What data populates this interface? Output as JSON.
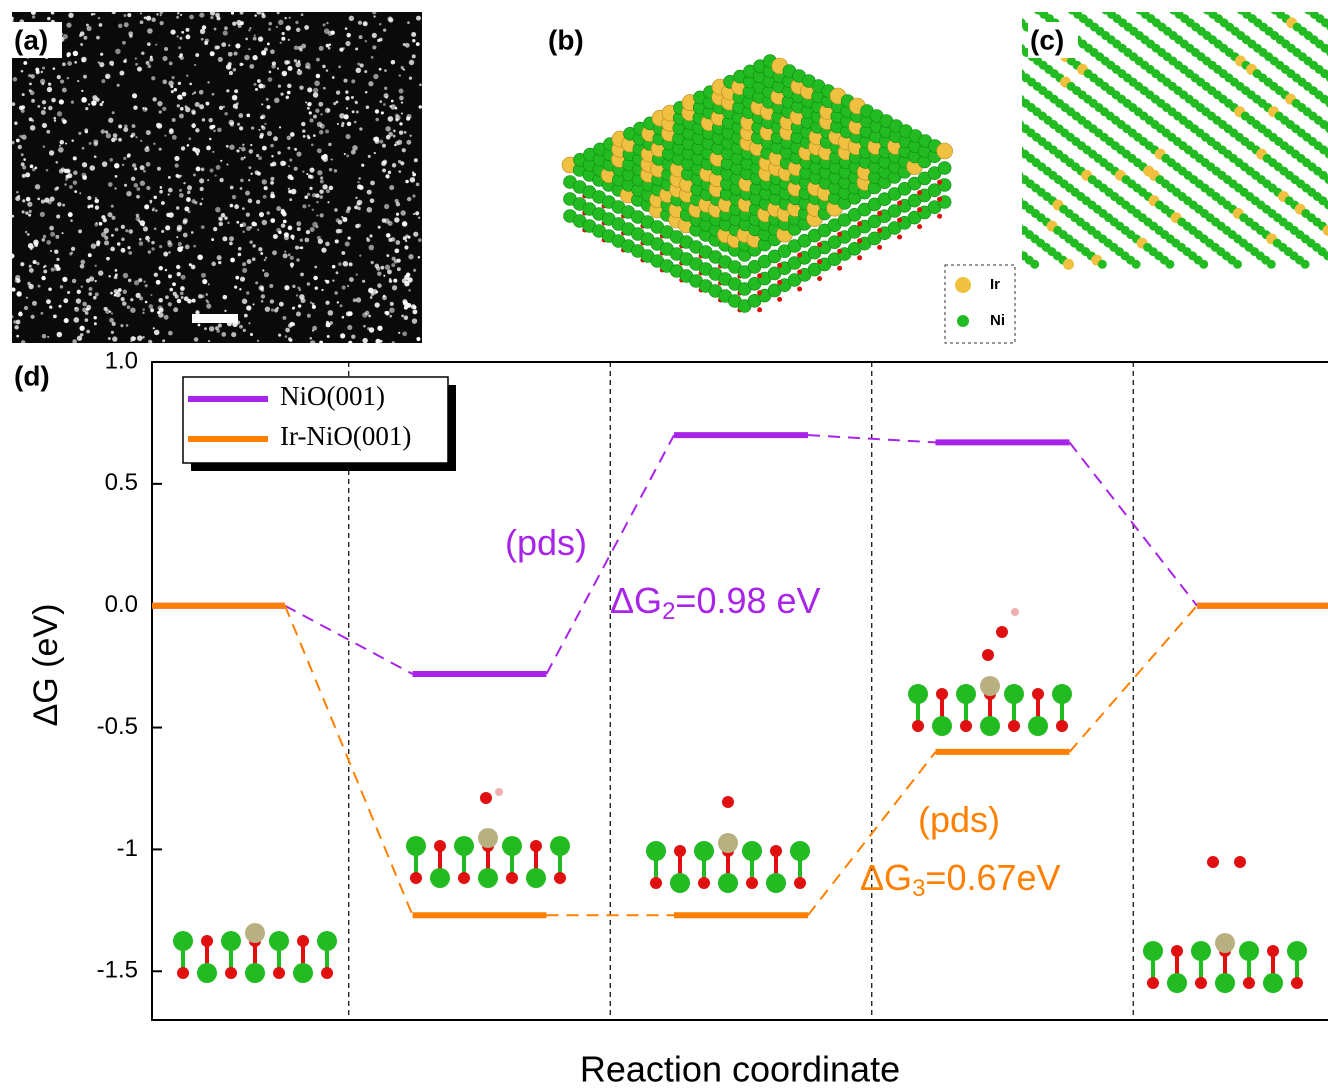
{
  "panel_labels": [
    "(a)",
    "(b)",
    "(c)",
    "(d)"
  ],
  "panel_b_legend": [
    "Ir",
    "Ni"
  ],
  "chart_data": {
    "type": "energy-levels",
    "xlabel": "Reaction coordinate",
    "ylabel": "ΔG (eV)",
    "categories": [
      null,
      null,
      null,
      null,
      null
    ],
    "series": [
      {
        "name": "NiO(001)",
        "color": "#a824e8",
        "values": [
          0,
          -0.28,
          0.7,
          0.67,
          0
        ]
      },
      {
        "name": "Ir-NiO(001)",
        "color": "#ff8000",
        "values": [
          0,
          -1.27,
          -1.27,
          -0.6,
          0
        ]
      }
    ],
    "ylim": [
      -1.7,
      1.0
    ],
    "yticks": [
      -1.5,
      -1.0,
      -0.5,
      {
        "value": 0,
        "label": "0.0"
      },
      0.5,
      {
        "value": 1,
        "label": "1.0"
      }
    ],
    "legend": "top-left",
    "annotations": [
      {
        "text": "(pds)",
        "color": "#a824e8"
      },
      {
        "text": "ΔG",
        "subscript": "2",
        "text_after": "=0.98 eV",
        "color": "#a824e8"
      },
      {
        "text": "(pds)",
        "color": "#ff8000"
      },
      {
        "text": "ΔG",
        "subscript": "3",
        "text_after": "=0.67eV",
        "color": "#ff8000"
      }
    ]
  }
}
